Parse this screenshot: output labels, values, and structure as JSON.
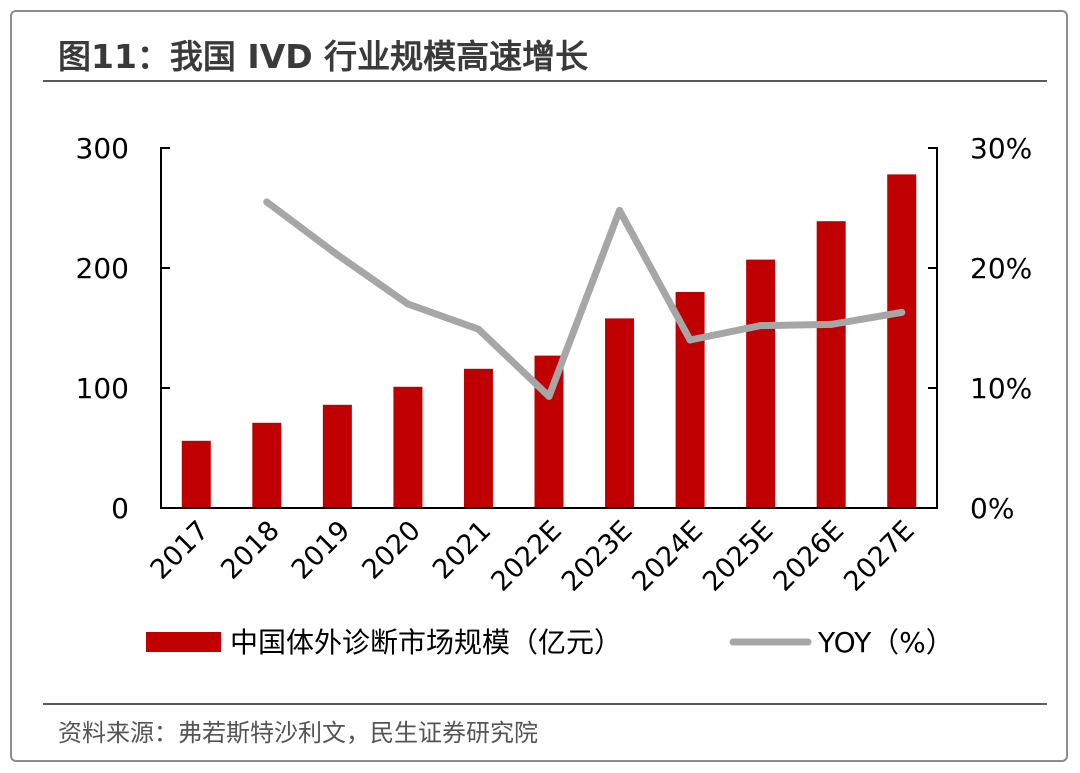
{
  "title": "图11：我国 IVD 行业规模高速增长",
  "source": "资料来源：弗若斯特沙利文，民生证券研究院",
  "colors": {
    "bar": "#c00000",
    "line": "#a6a6a6",
    "axis": "#000000",
    "text": "#000000"
  },
  "chart_data": {
    "type": "bar",
    "categories": [
      "2017",
      "2018",
      "2019",
      "2020",
      "2021",
      "2022E",
      "2023E",
      "2024E",
      "2025E",
      "2026E",
      "2027E"
    ],
    "series": [
      {
        "name": "中国体外诊断市场规模（亿元）",
        "type": "bar",
        "axis": "left",
        "values": [
          56,
          71,
          86,
          101,
          116,
          127,
          158,
          180,
          207,
          239,
          278
        ]
      },
      {
        "name": "YOY（%）",
        "type": "line",
        "axis": "right",
        "values": [
          null,
          25.5,
          21.1,
          17.0,
          14.9,
          9.3,
          24.8,
          14.0,
          15.2,
          15.3,
          16.3
        ]
      }
    ],
    "y_left": {
      "ylim": [
        0,
        300
      ],
      "ticks": [
        "0",
        "100",
        "200",
        "300"
      ],
      "tick_values": [
        0,
        100,
        200,
        300
      ]
    },
    "y_right": {
      "ylim": [
        0,
        30
      ],
      "ticks": [
        "0%",
        "10%",
        "20%",
        "30%"
      ],
      "tick_values": [
        0,
        10,
        20,
        30
      ]
    },
    "legend_position": "bottom",
    "grid": false
  }
}
